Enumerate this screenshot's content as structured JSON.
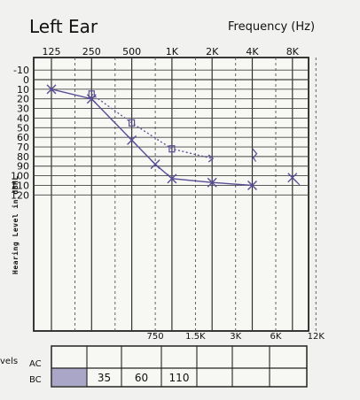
{
  "header": {
    "title": "Left Ear",
    "frequency_label": "Frequency (Hz)"
  },
  "chart_data": {
    "type": "line",
    "title": "Left Ear",
    "xlabel": "Frequency (Hz)",
    "ylabel": "Hearing Level in dBHL",
    "x_scale": "log2 (octave)",
    "x_tick_labels_top": [
      "125",
      "250",
      "500",
      "1K",
      "2K",
      "4K",
      "8K"
    ],
    "x_tick_labels_bottom": [
      "750",
      "1.5K",
      "3K",
      "6K",
      "12K"
    ],
    "y_tick_labels": [
      "-10",
      "0",
      "10",
      "20",
      "30",
      "40",
      "50",
      "60",
      "70",
      "80",
      "90",
      "100",
      "110",
      "120"
    ],
    "ylim": [
      120,
      -10
    ],
    "grid": true,
    "series": [
      {
        "marker": "x",
        "line": "solid",
        "color": "#5a4d96",
        "x": [
          125,
          250,
          500,
          750,
          1000,
          2000,
          4000
        ],
        "y": [
          10,
          20,
          63,
          88,
          103,
          107,
          110
        ]
      },
      {
        "marker": "square-bracket",
        "line": "dotted",
        "color": "#5a4d96",
        "x": [
          250,
          500,
          1000,
          2000
        ],
        "y": [
          15,
          45,
          72,
          82
        ]
      }
    ],
    "unconnected_marks": [
      {
        "marker": "bracket-arrow",
        "x": 4000,
        "y": 77
      },
      {
        "marker": "x-arrow",
        "x": 8000,
        "y": 102
      }
    ]
  },
  "levels_table": {
    "title_fragment": "vels",
    "row_labels": [
      "AC",
      "BC"
    ],
    "bc_values": [
      "",
      "35",
      "60",
      "110",
      "",
      "",
      ""
    ]
  }
}
